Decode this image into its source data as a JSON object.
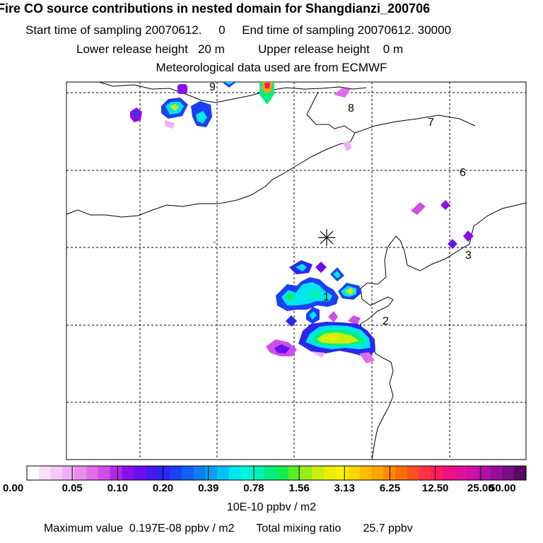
{
  "header": {
    "title": "Fire CO source contributions in nested domain for Shangdianzi_200706",
    "start_label": "Start time of sampling 20070612.",
    "start_value": "0",
    "end_label": "End time of sampling 20070612. 30000",
    "lower_label": "Lower release height",
    "lower_value": "20 m",
    "upper_label": "Upper release height",
    "upper_value": "0 m",
    "met_line": "Meteorological data used are from ECMWF"
  },
  "map": {
    "region_labels": [
      "1",
      "2",
      "3",
      "6",
      "7",
      "8",
      "9"
    ],
    "station_marker": "receptor-asterisk"
  },
  "legend": {
    "tick_labels": [
      "0.00",
      "0.05",
      "0.10",
      "0.20",
      "0.39",
      "0.78",
      "1.56",
      "3.13",
      "6.25",
      "12.50",
      "25.00",
      "50.00"
    ],
    "colors": [
      "#ffffff",
      "#fbe2fb",
      "#f6c8f7",
      "#f0aef3",
      "#e98ded",
      "#e06ce9",
      "#cf4ee8",
      "#b428e6",
      "#8a10e8",
      "#6a10f0",
      "#4a18f2",
      "#2a26f0",
      "#1a40f2",
      "#1160f2",
      "#0b7ff2",
      "#0aa0f2",
      "#08c0f2",
      "#00e5f0",
      "#00f5d8",
      "#00f0b0",
      "#00f080",
      "#12ee50",
      "#5aee28",
      "#98ee18",
      "#c8ee10",
      "#eaee08",
      "#fff000",
      "#ffd800",
      "#ffbe00",
      "#ffa400",
      "#ff8a00",
      "#ff6e00",
      "#ff5020",
      "#ff3040",
      "#ff1a60",
      "#f01080",
      "#e01098",
      "#cc10a8",
      "#b010a8",
      "#941098",
      "#780c80",
      "#5a0860"
    ],
    "unit": "10E-10 ppbv / m2"
  },
  "footer": {
    "max_label": "Maximum value",
    "max_value": "0.197E-08 ppbv / m2",
    "total_label": "Total mixing ratio",
    "total_value": "25.7 ppbv"
  }
}
